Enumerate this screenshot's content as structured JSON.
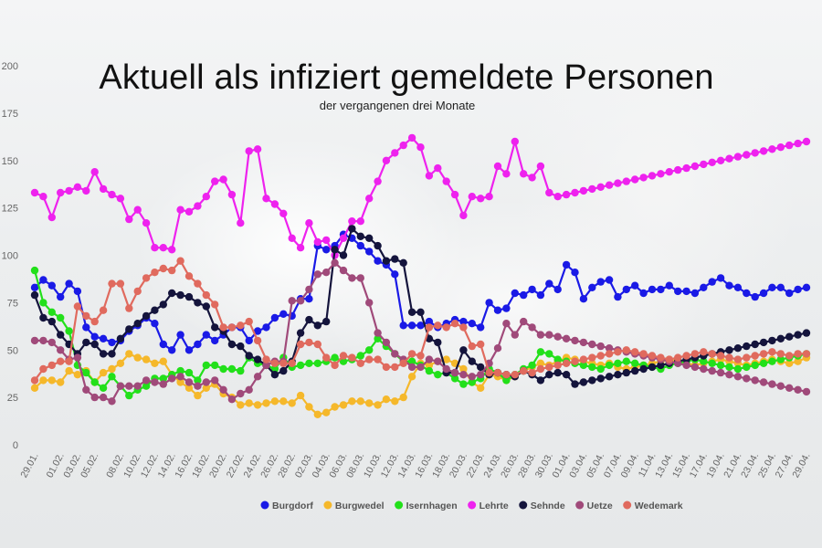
{
  "chart_data": {
    "type": "line",
    "title": "Aktuell als infiziert gemeldete Personen",
    "subtitle": "der vergangenen drei Monate",
    "ylim": [
      0,
      200
    ],
    "yticks": [
      0,
      25,
      50,
      75,
      100,
      125,
      150,
      175,
      200
    ],
    "grid": false,
    "legend_position": "bottom",
    "x": [
      "29.01.",
      "30.01.",
      "31.01.",
      "01.02.",
      "02.02.",
      "03.02.",
      "04.02.",
      "05.02.",
      "06.02.",
      "07.02.",
      "08.02.",
      "09.02.",
      "10.02.",
      "11.02.",
      "12.02.",
      "13.02.",
      "14.02.",
      "15.02.",
      "16.02.",
      "17.02.",
      "18.02.",
      "19.02.",
      "20.02.",
      "21.02.",
      "22.02.",
      "23.02.",
      "24.02.",
      "25.02.",
      "26.02.",
      "27.02.",
      "28.02.",
      "01.03.",
      "02.03.",
      "03.03.",
      "04.03.",
      "05.03.",
      "06.03.",
      "07.03.",
      "08.03.",
      "09.03.",
      "10.03.",
      "11.03.",
      "12.03.",
      "13.03.",
      "14.03.",
      "15.03.",
      "16.03.",
      "17.03.",
      "18.03.",
      "19.03.",
      "20.03.",
      "21.03.",
      "22.03.",
      "23.03.",
      "24.03.",
      "25.03.",
      "26.03.",
      "27.03.",
      "28.03.",
      "29.03.",
      "30.03.",
      "31.03.",
      "01.04.",
      "02.04.",
      "03.04.",
      "04.04.",
      "05.04.",
      "06.04.",
      "07.04.",
      "08.04.",
      "09.04.",
      "10.04.",
      "11.04.",
      "12.04.",
      "13.04.",
      "14.04.",
      "15.04.",
      "16.04.",
      "17.04.",
      "18.04.",
      "19.04.",
      "20.04.",
      "21.04.",
      "22.04.",
      "23.04.",
      "24.04.",
      "25.04.",
      "26.04.",
      "27.04.",
      "28.04.",
      "29.04."
    ],
    "xticks": [
      "29.01.",
      "01.02.",
      "03.02.",
      "05.02.",
      "08.02.",
      "10.02.",
      "12.02.",
      "14.02.",
      "16.02.",
      "18.02.",
      "20.02.",
      "22.02.",
      "24.02.",
      "26.02.",
      "28.02.",
      "02.03.",
      "04.03.",
      "06.03.",
      "08.03.",
      "10.03.",
      "12.03.",
      "14.03.",
      "16.03.",
      "18.03.",
      "20.03.",
      "22.03.",
      "24.03.",
      "26.03.",
      "28.03.",
      "30.03.",
      "01.04.",
      "03.04.",
      "05.04.",
      "07.04.",
      "09.04.",
      "11.04.",
      "13.04.",
      "15.04.",
      "17.04.",
      "19.04.",
      "21.04.",
      "23.04.",
      "25.04.",
      "27.04.",
      "29.04."
    ],
    "series": [
      {
        "name": "Burgdorf",
        "color": "#1a1ae6",
        "values": [
          83,
          87,
          84,
          78,
          85,
          81,
          62,
          57,
          56,
          54,
          55,
          60,
          63,
          67,
          64,
          53,
          50,
          58,
          50,
          53,
          58,
          55,
          58,
          62,
          62,
          55,
          60,
          62,
          67,
          69,
          68,
          77,
          77,
          105,
          103,
          105,
          111,
          109,
          105,
          102,
          97,
          95,
          90,
          63,
          63,
          63,
          65,
          62,
          64,
          66,
          65,
          64,
          62,
          75,
          71,
          72,
          80,
          79,
          82,
          79,
          85,
          82,
          95,
          91,
          77,
          83,
          86,
          87,
          78,
          82,
          84,
          80,
          82,
          82,
          84,
          81,
          81,
          80,
          83,
          86,
          88,
          84,
          83,
          80,
          78,
          80,
          83,
          83,
          80,
          82,
          83
        ]
      },
      {
        "name": "Burgwedel",
        "color": "#f5b82b",
        "values": [
          30,
          34,
          34,
          33,
          39,
          37,
          39,
          33,
          38,
          40,
          43,
          48,
          46,
          45,
          43,
          44,
          37,
          33,
          30,
          26,
          30,
          32,
          27,
          25,
          21,
          22,
          21,
          22,
          23,
          23,
          22,
          26,
          20,
          16,
          17,
          20,
          21,
          23,
          23,
          22,
          21,
          24,
          23,
          25,
          36,
          43,
          42,
          44,
          45,
          43,
          40,
          33,
          30,
          37,
          36,
          34,
          36,
          39,
          41,
          43,
          42,
          44,
          46,
          45,
          44,
          43,
          42,
          43,
          41,
          40,
          41,
          42,
          43,
          44,
          45,
          44,
          43,
          42,
          43,
          44,
          45,
          44,
          43,
          42,
          43,
          44,
          45,
          44,
          43,
          44,
          46
        ]
      },
      {
        "name": "Isernhagen",
        "color": "#22e01a",
        "values": [
          92,
          75,
          70,
          67,
          60,
          42,
          38,
          33,
          30,
          36,
          31,
          26,
          29,
          31,
          35,
          35,
          37,
          39,
          38,
          34,
          42,
          42,
          40,
          40,
          39,
          46,
          43,
          42,
          40,
          46,
          41,
          42,
          43,
          43,
          44,
          46,
          44,
          45,
          47,
          50,
          56,
          52,
          48,
          44,
          44,
          42,
          39,
          37,
          38,
          35,
          32,
          33,
          35,
          40,
          38,
          34,
          37,
          40,
          42,
          49,
          48,
          45,
          44,
          43,
          42,
          41,
          40,
          42,
          43,
          44,
          43,
          42,
          41,
          40,
          42,
          43,
          44,
          45,
          44,
          43,
          42,
          41,
          40,
          41,
          42,
          43,
          44,
          45,
          46,
          47,
          48
        ]
      },
      {
        "name": "Lehrte",
        "color": "#ee22ee",
        "values": [
          133,
          131,
          120,
          133,
          134,
          136,
          134,
          144,
          135,
          132,
          130,
          119,
          124,
          117,
          104,
          104,
          103,
          124,
          123,
          126,
          131,
          139,
          140,
          132,
          117,
          155,
          156,
          130,
          127,
          122,
          109,
          104,
          117,
          107,
          108,
          100,
          109,
          118,
          118,
          130,
          139,
          150,
          154,
          158,
          162,
          157,
          142,
          146,
          139,
          132,
          121,
          131,
          130,
          131,
          147,
          143,
          160,
          143,
          141,
          147,
          133,
          131,
          132,
          133,
          134,
          135,
          136,
          137,
          138,
          139,
          140,
          141,
          142,
          143,
          144,
          145,
          146,
          147,
          148,
          149,
          150,
          151,
          152,
          153,
          154,
          155,
          156,
          157,
          158,
          159,
          160
        ]
      },
      {
        "name": "Sehnde",
        "color": "#14143c",
        "values": [
          79,
          67,
          65,
          58,
          53,
          48,
          54,
          53,
          48,
          48,
          56,
          61,
          64,
          68,
          71,
          74,
          80,
          79,
          78,
          75,
          73,
          62,
          60,
          53,
          52,
          47,
          45,
          42,
          37,
          39,
          44,
          59,
          66,
          63,
          65,
          103,
          100,
          114,
          110,
          109,
          105,
          97,
          98,
          96,
          70,
          70,
          56,
          54,
          38,
          38,
          50,
          44,
          41,
          37,
          38,
          37,
          36,
          39,
          37,
          34,
          37,
          38,
          37,
          32,
          33,
          34,
          35,
          36,
          37,
          38,
          39,
          40,
          41,
          42,
          43,
          44,
          45,
          46,
          47,
          48,
          49,
          50,
          51,
          52,
          53,
          54,
          55,
          56,
          57,
          58,
          59
        ]
      },
      {
        "name": "Uetze",
        "color": "#a04a7a",
        "values": [
          55,
          55,
          54,
          50,
          45,
          46,
          29,
          25,
          25,
          23,
          31,
          31,
          31,
          34,
          33,
          32,
          35,
          36,
          33,
          31,
          33,
          34,
          29,
          24,
          27,
          29,
          36,
          42,
          44,
          44,
          76,
          76,
          82,
          90,
          91,
          96,
          92,
          88,
          88,
          75,
          59,
          54,
          48,
          45,
          41,
          41,
          45,
          44,
          40,
          38,
          37,
          36,
          37,
          43,
          51,
          64,
          58,
          65,
          62,
          58,
          58,
          57,
          56,
          55,
          54,
          53,
          52,
          51,
          50,
          49,
          48,
          47,
          46,
          45,
          44,
          43,
          42,
          41,
          40,
          39,
          38,
          37,
          36,
          35,
          34,
          33,
          32,
          31,
          30,
          29,
          28
        ]
      },
      {
        "name": "Wedemark",
        "color": "#e06a5e",
        "values": [
          34,
          40,
          42,
          44,
          44,
          73,
          68,
          65,
          71,
          85,
          85,
          72,
          81,
          88,
          91,
          93,
          92,
          97,
          89,
          85,
          79,
          74,
          62,
          62,
          63,
          65,
          55,
          45,
          43,
          43,
          43,
          53,
          54,
          53,
          46,
          42,
          47,
          46,
          43,
          45,
          45,
          41,
          41,
          43,
          48,
          47,
          62,
          63,
          62,
          64,
          62,
          52,
          53,
          38,
          38,
          37,
          37,
          39,
          38,
          40,
          41,
          42,
          43,
          44,
          45,
          46,
          47,
          48,
          49,
          50,
          49,
          48,
          47,
          46,
          45,
          46,
          47,
          48,
          49,
          48,
          47,
          46,
          45,
          46,
          47,
          48,
          49,
          48,
          47,
          48,
          48
        ]
      }
    ]
  }
}
